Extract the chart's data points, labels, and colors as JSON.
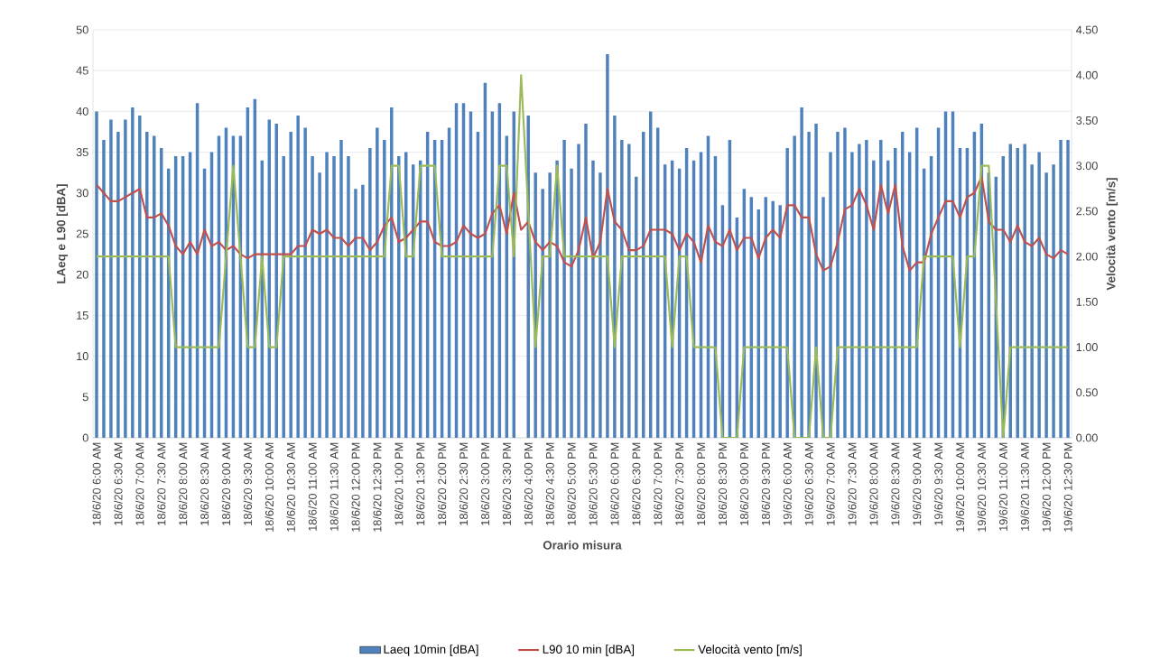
{
  "chart_data": {
    "type": "bar",
    "xlabel": "Orario misura",
    "ylabel": "LAeq e L90 [dBA]",
    "y2label": "Velocità vento [m/s]",
    "categories": [
      "18/6/20 6:00 AM",
      null,
      null,
      "18/6/20 6:30 AM",
      null,
      null,
      "18/6/20 7:00 AM",
      null,
      null,
      "18/6/20 7:30 AM",
      null,
      null,
      "18/6/20 8:00 AM",
      null,
      null,
      "18/6/20 8:30 AM",
      null,
      null,
      "18/6/20 9:00 AM",
      null,
      null,
      "18/6/20 9:30 AM",
      null,
      null,
      "18/6/20 10:00 AM",
      null,
      null,
      "18/6/20 10:30 AM",
      null,
      null,
      "18/6/20 11:00 AM",
      null,
      null,
      "18/6/20 11:30 AM",
      null,
      null,
      "18/6/20 12:00 PM",
      null,
      null,
      "18/6/20 12:30 PM",
      null,
      null,
      "18/6/20 1:00 PM",
      null,
      null,
      "18/6/20 1:30 PM",
      null,
      null,
      "18/6/20 2:00 PM",
      null,
      null,
      "18/6/20 2:30 PM",
      null,
      null,
      "18/6/20 3:00 PM",
      null,
      null,
      "18/6/20 3:30 PM",
      null,
      null,
      "18/6/20 4:00 PM",
      null,
      null,
      "18/6/20 4:30 PM",
      null,
      null,
      "18/6/20 5:00 PM",
      null,
      null,
      "18/6/20 5:30 PM",
      null,
      null,
      "18/6/20 6:00 PM",
      null,
      null,
      "18/6/20 6:30 PM",
      null,
      null,
      "18/6/20 7:00 PM",
      null,
      null,
      "18/6/20 7:30 PM",
      null,
      null,
      "18/6/20 8:00 PM",
      null,
      null,
      "18/6/20 8:30 PM",
      null,
      null,
      "18/6/20 9:00 PM",
      null,
      null,
      "18/6/20 9:30 PM",
      null,
      null,
      "19/6/20 6:00 AM",
      null,
      null,
      "19/6/20 6:30 AM",
      null,
      null,
      "19/6/20 7:00 AM",
      null,
      null,
      "19/6/20 7:30 AM",
      null,
      null,
      "19/6/20 8:00 AM",
      null,
      null,
      "19/6/20 8:30 AM",
      null,
      null,
      "19/6/20 9:00 AM",
      null,
      null,
      "19/6/20 9:30 AM",
      null,
      null,
      "19/6/20 10:00 AM",
      null,
      null,
      "19/6/20 10:30 AM",
      null,
      null,
      "19/6/20 11:00 AM",
      null,
      null,
      "19/6/20 11:30 AM",
      null,
      null,
      "19/6/20 12:00 PM",
      null,
      null,
      "19/6/20 12:30 PM"
    ],
    "series": [
      {
        "name": "Laeq 10min [dBA]",
        "color": "#4f81bd",
        "values": [
          40,
          36.5,
          39,
          37.5,
          39,
          40.5,
          39.5,
          37.5,
          37,
          35.5,
          33,
          34.5,
          34.5,
          35,
          41,
          33,
          35,
          37,
          38,
          37,
          37,
          40.5,
          41.5,
          34,
          39,
          38.5,
          34.5,
          37.5,
          39.5,
          38,
          34.5,
          32.5,
          35,
          34.5,
          36.5,
          34.5,
          30.5,
          31,
          35.5,
          38,
          36.5,
          40.5,
          34.5,
          35,
          33.5,
          34,
          37.5,
          36.5,
          36.5,
          38,
          41,
          41,
          40,
          37.5,
          43.5,
          40,
          41,
          37,
          40,
          null,
          39.5,
          32.5,
          30.5,
          32.5,
          34,
          36.5,
          33,
          36,
          38.5,
          34,
          32.5,
          47,
          39.5,
          36.5,
          36,
          32,
          37.5,
          40,
          38,
          33.5,
          34,
          33,
          35.5,
          34,
          35,
          37,
          34.5,
          28.5,
          36.5,
          27,
          30.5,
          29.5,
          28,
          29.5,
          29,
          28.5,
          35.5,
          37,
          40.5,
          37.5,
          38.5,
          29.5,
          35,
          37.5,
          38,
          35,
          36,
          36.5,
          34,
          36.5,
          34,
          35.5,
          37.5,
          35,
          38,
          33,
          34.5,
          38,
          40,
          40,
          35.5,
          35.5,
          37.5,
          38.5,
          32.5,
          32,
          34.5,
          36,
          35.5,
          36,
          33.5,
          35,
          32.5,
          33.5,
          36.5,
          36.5
        ]
      },
      {
        "name": "L90 10 min [dBA]",
        "type": "line",
        "color": "#c0504d",
        "values": [
          31,
          30,
          29,
          29,
          29.5,
          30,
          30.5,
          27,
          27,
          27.5,
          26,
          23.5,
          22.5,
          24,
          22.5,
          25.5,
          23.5,
          24,
          23,
          23.5,
          22.5,
          22,
          22.5,
          22.5,
          22.5,
          22.5,
          22.5,
          22.5,
          23.5,
          23.5,
          25.5,
          25,
          25.5,
          24.5,
          24.5,
          23.5,
          24.5,
          24.5,
          23,
          24,
          26,
          27,
          24,
          24.5,
          25.5,
          26.5,
          26.5,
          24,
          23.5,
          23.5,
          24,
          26,
          25,
          24.5,
          25,
          27.5,
          28.5,
          25,
          30,
          25.5,
          26.5,
          24,
          23,
          24,
          23.5,
          21.5,
          21,
          23,
          27,
          22,
          24,
          30.5,
          26.5,
          25.5,
          23,
          23,
          23.5,
          25.5,
          25.5,
          25.5,
          25,
          23,
          25,
          24,
          21.5,
          26,
          24,
          23.5,
          25.5,
          23,
          24.5,
          24.5,
          22,
          24.5,
          25.5,
          24.5,
          28.5,
          28.5,
          27,
          27,
          22.5,
          20.5,
          21,
          24,
          28,
          28.5,
          30.5,
          28.5,
          25.5,
          31,
          27.5,
          31,
          23.5,
          20.5,
          21.5,
          21.5,
          25,
          27,
          29,
          29,
          27,
          29.5,
          30,
          32,
          26.5,
          25.5,
          25.5,
          24,
          26,
          24,
          23.5,
          24.5,
          22.5,
          22,
          23,
          22.5
        ]
      },
      {
        "name": "Velocità vento [m/s]",
        "type": "line",
        "axis": "y2",
        "color": "#9bbb59",
        "values": [
          2,
          2,
          2,
          2,
          2,
          2,
          2,
          2,
          2,
          2,
          2,
          1,
          1,
          1,
          1,
          1,
          1,
          1,
          2,
          3,
          2,
          1,
          1,
          2,
          1,
          1,
          2,
          2,
          2,
          2,
          2,
          2,
          2,
          2,
          2,
          2,
          2,
          2,
          2,
          2,
          2,
          3,
          3,
          2,
          2,
          3,
          3,
          3,
          2,
          2,
          2,
          2,
          2,
          2,
          2,
          2,
          3,
          3,
          2,
          4,
          2.5,
          1,
          2,
          2,
          3,
          2,
          2,
          2,
          2,
          2,
          2,
          2,
          1,
          2,
          2,
          2,
          2,
          2,
          2,
          2,
          1,
          2,
          2,
          1,
          1,
          1,
          1,
          0,
          0,
          0,
          1,
          1,
          1,
          1,
          1,
          1,
          1,
          0,
          0,
          0,
          1,
          0,
          0,
          1,
          1,
          1,
          1,
          1,
          1,
          1,
          1,
          1,
          1,
          1,
          1,
          2,
          2,
          2,
          2,
          2,
          1,
          2,
          2,
          3,
          3,
          1.5,
          0,
          1,
          1,
          1,
          1,
          1,
          1,
          1,
          1,
          1
        ]
      }
    ],
    "ylim": [
      0,
      50
    ],
    "yticks": [
      0,
      5,
      10,
      15,
      20,
      25,
      30,
      35,
      40,
      45,
      50
    ],
    "y2lim": [
      0,
      4.5
    ],
    "y2ticks": [
      {
        "value": 0,
        "label": "0.00"
      },
      {
        "value": 0.5,
        "label": "0.50"
      },
      {
        "value": 1,
        "label": "1.00"
      },
      {
        "value": 1.5,
        "label": "1.50"
      },
      {
        "value": 2,
        "label": "2.00"
      },
      {
        "value": 2.5,
        "label": "2.50"
      },
      {
        "value": 3,
        "label": "3.00"
      },
      {
        "value": 3.5,
        "label": "3.50"
      },
      {
        "value": 4,
        "label": "4.00"
      },
      {
        "value": 4.5,
        "label": "4.50"
      }
    ],
    "grid": "y",
    "legend": "bottom"
  }
}
